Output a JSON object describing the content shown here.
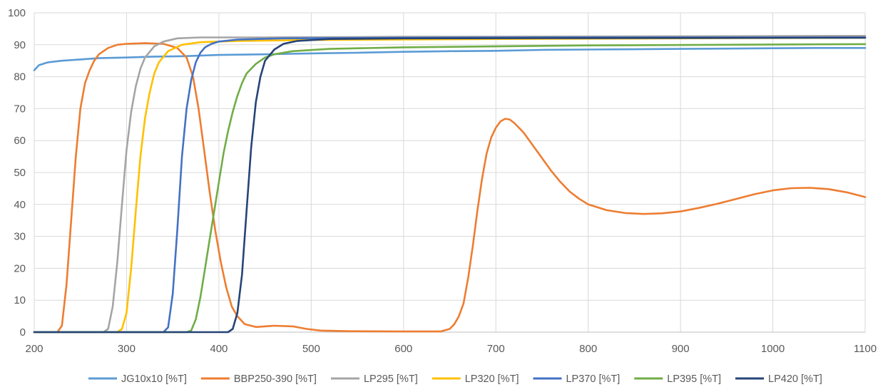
{
  "chart_data": {
    "type": "line",
    "title": "",
    "xlabel": "",
    "ylabel": "",
    "xlim": [
      200,
      1100
    ],
    "ylim": [
      0,
      100
    ],
    "x_ticks": [
      200,
      300,
      400,
      500,
      600,
      700,
      800,
      900,
      1000,
      1100
    ],
    "y_ticks": [
      0,
      10,
      20,
      30,
      40,
      50,
      60,
      70,
      80,
      90,
      100
    ],
    "x_tick_labels": [
      "200",
      "300",
      "400",
      "500",
      "600",
      "700",
      "800",
      "900",
      "1000",
      "1100"
    ],
    "y_tick_labels": [
      "0",
      "10",
      "20",
      "30",
      "40",
      "50",
      "60",
      "70",
      "80",
      "90",
      "100"
    ],
    "grid": "vertical and horizontal",
    "legend_position": "bottom",
    "series": [
      {
        "name": "JG10x10 [%T]",
        "color": "#5b9bd5",
        "points": [
          [
            200,
            82
          ],
          [
            205,
            83.6
          ],
          [
            215,
            84.5
          ],
          [
            230,
            85
          ],
          [
            250,
            85.4
          ],
          [
            270,
            85.8
          ],
          [
            300,
            86
          ],
          [
            330,
            86.3
          ],
          [
            360,
            86.4
          ],
          [
            400,
            86.8
          ],
          [
            450,
            87
          ],
          [
            500,
            87.3
          ],
          [
            550,
            87.5
          ],
          [
            600,
            87.8
          ],
          [
            650,
            88
          ],
          [
            700,
            88.1
          ],
          [
            750,
            88.4
          ],
          [
            800,
            88.5
          ],
          [
            850,
            88.6
          ],
          [
            900,
            88.7
          ],
          [
            950,
            88.8
          ],
          [
            1000,
            88.9
          ],
          [
            1050,
            89
          ],
          [
            1100,
            89
          ]
        ]
      },
      {
        "name": "BBP250-390 [%T]",
        "color": "#ed7d31",
        "points": [
          [
            200,
            0
          ],
          [
            225,
            0
          ],
          [
            230,
            2
          ],
          [
            235,
            15
          ],
          [
            240,
            35
          ],
          [
            245,
            55
          ],
          [
            250,
            70
          ],
          [
            255,
            78
          ],
          [
            260,
            82
          ],
          [
            265,
            85
          ],
          [
            270,
            87
          ],
          [
            280,
            89
          ],
          [
            290,
            90
          ],
          [
            300,
            90.3
          ],
          [
            320,
            90.5
          ],
          [
            340,
            90.3
          ],
          [
            355,
            89
          ],
          [
            365,
            86
          ],
          [
            372,
            80
          ],
          [
            378,
            70
          ],
          [
            384,
            57
          ],
          [
            390,
            44
          ],
          [
            396,
            32
          ],
          [
            402,
            22
          ],
          [
            408,
            14
          ],
          [
            414,
            8
          ],
          [
            420,
            5
          ],
          [
            428,
            2.5
          ],
          [
            440,
            1.6
          ],
          [
            460,
            2
          ],
          [
            480,
            1.8
          ],
          [
            495,
            1
          ],
          [
            510,
            0.5
          ],
          [
            540,
            0.3
          ],
          [
            600,
            0.2
          ],
          [
            640,
            0.2
          ],
          [
            650,
            1
          ],
          [
            655,
            2.5
          ],
          [
            660,
            5
          ],
          [
            665,
            9
          ],
          [
            670,
            17
          ],
          [
            675,
            27
          ],
          [
            680,
            38
          ],
          [
            685,
            48
          ],
          [
            690,
            56
          ],
          [
            695,
            61
          ],
          [
            700,
            64
          ],
          [
            705,
            66
          ],
          [
            710,
            66.8
          ],
          [
            715,
            66.6
          ],
          [
            720,
            65.5
          ],
          [
            730,
            62.5
          ],
          [
            740,
            58.5
          ],
          [
            750,
            54.5
          ],
          [
            760,
            50.5
          ],
          [
            770,
            47
          ],
          [
            780,
            44
          ],
          [
            790,
            41.8
          ],
          [
            800,
            40
          ],
          [
            820,
            38.2
          ],
          [
            840,
            37.3
          ],
          [
            860,
            37
          ],
          [
            880,
            37.2
          ],
          [
            900,
            37.8
          ],
          [
            920,
            38.9
          ],
          [
            940,
            40.2
          ],
          [
            960,
            41.7
          ],
          [
            980,
            43.2
          ],
          [
            1000,
            44.4
          ],
          [
            1020,
            45.1
          ],
          [
            1040,
            45.2
          ],
          [
            1060,
            44.8
          ],
          [
            1080,
            43.8
          ],
          [
            1100,
            42.3
          ]
        ]
      },
      {
        "name": "LP295 [%T]",
        "color": "#a5a5a5",
        "points": [
          [
            200,
            0
          ],
          [
            275,
            0
          ],
          [
            280,
            1
          ],
          [
            285,
            8
          ],
          [
            290,
            22
          ],
          [
            295,
            40
          ],
          [
            300,
            57
          ],
          [
            305,
            69
          ],
          [
            310,
            77
          ],
          [
            315,
            82.5
          ],
          [
            320,
            86
          ],
          [
            330,
            89.5
          ],
          [
            340,
            91
          ],
          [
            355,
            92
          ],
          [
            380,
            92.3
          ],
          [
            450,
            92.3
          ],
          [
            600,
            92.5
          ],
          [
            800,
            92.6
          ],
          [
            1100,
            92.8
          ]
        ]
      },
      {
        "name": "LP320 [%T]",
        "color": "#ffc000",
        "points": [
          [
            200,
            0
          ],
          [
            290,
            0
          ],
          [
            295,
            1
          ],
          [
            300,
            6
          ],
          [
            305,
            20
          ],
          [
            310,
            38
          ],
          [
            315,
            55
          ],
          [
            320,
            67
          ],
          [
            325,
            75
          ],
          [
            330,
            81
          ],
          [
            335,
            84.5
          ],
          [
            345,
            88
          ],
          [
            360,
            90
          ],
          [
            380,
            90.8
          ],
          [
            420,
            91.2
          ],
          [
            500,
            91.5
          ],
          [
            700,
            91.8
          ],
          [
            900,
            92
          ],
          [
            1100,
            92.2
          ]
        ]
      },
      {
        "name": "LP370 [%T]",
        "color": "#4472c4",
        "points": [
          [
            200,
            0
          ],
          [
            340,
            0
          ],
          [
            345,
            1.5
          ],
          [
            350,
            12
          ],
          [
            355,
            32
          ],
          [
            360,
            55
          ],
          [
            365,
            70
          ],
          [
            370,
            79
          ],
          [
            375,
            84.5
          ],
          [
            380,
            87.5
          ],
          [
            385,
            89.2
          ],
          [
            392,
            90.3
          ],
          [
            400,
            91
          ],
          [
            420,
            91.6
          ],
          [
            470,
            92
          ],
          [
            600,
            92.2
          ],
          [
            800,
            92.3
          ],
          [
            1100,
            92.3
          ]
        ]
      },
      {
        "name": "LP395 [%T]",
        "color": "#70ad47",
        "points": [
          [
            200,
            0
          ],
          [
            365,
            0
          ],
          [
            370,
            0.5
          ],
          [
            375,
            4
          ],
          [
            380,
            11
          ],
          [
            385,
            20
          ],
          [
            390,
            29
          ],
          [
            395,
            38
          ],
          [
            400,
            47
          ],
          [
            405,
            56
          ],
          [
            410,
            63
          ],
          [
            415,
            69
          ],
          [
            420,
            74
          ],
          [
            425,
            78
          ],
          [
            430,
            81
          ],
          [
            440,
            84
          ],
          [
            450,
            86
          ],
          [
            460,
            87
          ],
          [
            480,
            88
          ],
          [
            520,
            88.7
          ],
          [
            600,
            89.2
          ],
          [
            800,
            89.8
          ],
          [
            1100,
            90.2
          ]
        ]
      },
      {
        "name": "LP420 [%T]",
        "color": "#264478",
        "points": [
          [
            200,
            0
          ],
          [
            410,
            0
          ],
          [
            415,
            1
          ],
          [
            420,
            6
          ],
          [
            425,
            18
          ],
          [
            430,
            38
          ],
          [
            435,
            58
          ],
          [
            440,
            72
          ],
          [
            445,
            80
          ],
          [
            450,
            85
          ],
          [
            460,
            88.5
          ],
          [
            470,
            90.3
          ],
          [
            485,
            91.2
          ],
          [
            520,
            91.8
          ],
          [
            600,
            92
          ],
          [
            800,
            92.1
          ],
          [
            1100,
            92.2
          ]
        ]
      }
    ]
  }
}
